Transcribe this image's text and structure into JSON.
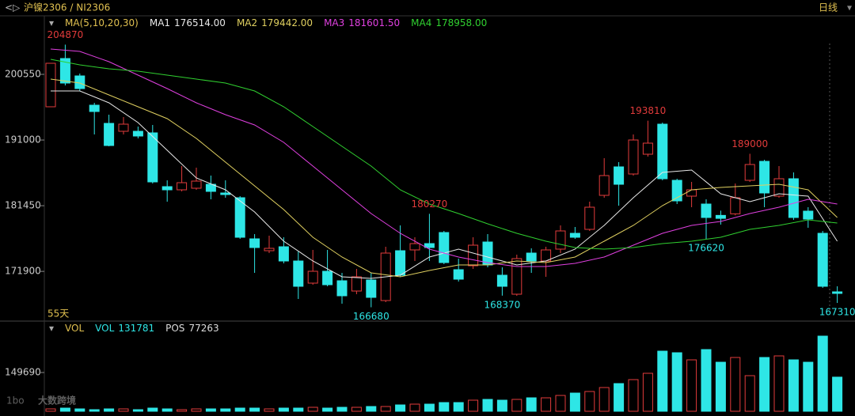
{
  "chart_data": {
    "type": "candlestick",
    "title": "沪镍2306 / NI2306",
    "period": "日线",
    "count_label": "55天",
    "watermark": "大数跨境",
    "up_color": "#e23b3b",
    "down_color": "#2ee6e6",
    "ylim": [
      164785,
      206990
    ],
    "yticks": [
      171900,
      181450,
      191000,
      200550
    ],
    "candles": {
      "open": [
        195835,
        202850,
        200320,
        196065,
        193420,
        192270,
        192270,
        192040,
        184220,
        183760,
        183990,
        184565,
        183300,
        182610,
        176630,
        174905,
        175480,
        173410,
        170190,
        171915,
        170535,
        169040,
        170650,
        167660,
        174905,
        175020,
        175940,
        177550,
        172145,
        172720,
        176170,
        171340,
        168580,
        174560,
        173410,
        175135,
        177435,
        178010,
        182955,
        187095,
        186060,
        188935,
        193305,
        185140,
        182840,
        181690,
        180040,
        180270,
        185140,
        187900,
        182840,
        185370,
        180660,
        177435,
        168925
      ],
      "high": [
        202160,
        204870,
        200665,
        196410,
        194685,
        194340,
        192960,
        193190,
        185140,
        187210,
        186980,
        185830,
        185140,
        182840,
        177320,
        177090,
        176860,
        174790,
        175020,
        175020,
        171685,
        172260,
        171685,
        175480,
        178585,
        176860,
        180270,
        177780,
        173755,
        176860,
        177320,
        172490,
        174330,
        175250,
        175480,
        178585,
        178355,
        182035,
        188360,
        187785,
        191810,
        193810,
        193535,
        185370,
        184910,
        182380,
        180730,
        184680,
        189000,
        188130,
        187210,
        186290,
        181230,
        177780,
        169730
      ],
      "low": [
        195835,
        198940,
        198135,
        191810,
        190085,
        191810,
        191235,
        184680,
        182035,
        183530,
        183760,
        182380,
        182610,
        176630,
        171685,
        174560,
        173065,
        167890,
        169960,
        169730,
        167200,
        168580,
        166680,
        167430,
        171110,
        173410,
        173410,
        172950,
        170420,
        172260,
        172490,
        168370,
        168350,
        171685,
        171110,
        174560,
        176630,
        177780,
        182610,
        181450,
        185830,
        188590,
        185140,
        181690,
        181230,
        176620,
        178700,
        180040,
        184910,
        181230,
        182610,
        179390,
        178240,
        169500,
        167310
      ],
      "close": [
        202160,
        199285,
        198480,
        195145,
        190200,
        193305,
        191580,
        184910,
        183760,
        184795,
        185025,
        183530,
        183070,
        176860,
        175365,
        175250,
        173410,
        169730,
        171915,
        169960,
        168350,
        171110,
        168120,
        174560,
        171340,
        175940,
        175365,
        173180,
        170765,
        175710,
        172835,
        169730,
        173755,
        173410,
        175020,
        177780,
        176860,
        181230,
        185830,
        184565,
        191005,
        190545,
        185370,
        182150,
        183760,
        179735,
        179610,
        182610,
        187440,
        183300,
        185370,
        179735,
        179505,
        169730,
        168695
      ]
    },
    "annotations": [
      {
        "x": 1,
        "value": 204870,
        "position": "above"
      },
      {
        "x": 26,
        "value": 180270,
        "position": "above"
      },
      {
        "x": 41,
        "value": 193810,
        "position": "above"
      },
      {
        "x": 48,
        "value": 189000,
        "position": "above"
      },
      {
        "x": 22,
        "value": 166680,
        "position": "below"
      },
      {
        "x": 31,
        "value": 168370,
        "position": "below"
      },
      {
        "x": 45,
        "value": 176620,
        "position": "below"
      },
      {
        "x": 54,
        "value": 167310,
        "position": "below"
      }
    ],
    "ma_label": "MA(5,10,20,30)",
    "ma_x": [
      0,
      2,
      4,
      6,
      8,
      10,
      12,
      14,
      16,
      18,
      20,
      22,
      24,
      26,
      28,
      30,
      32,
      34,
      36,
      38,
      40,
      42,
      44,
      46,
      48,
      50,
      52,
      54
    ],
    "ma": [
      {
        "name": "MA1",
        "color": "#e8e8e8",
        "last": 176514,
        "last_label": "176514.00",
        "values": [
          198135,
          198135,
          196410,
          193535,
          189510,
          185485,
          183760,
          180540,
          176285,
          173410,
          171110,
          170880,
          171340,
          173985,
          175135,
          173985,
          172835,
          173410,
          175135,
          178585,
          182610,
          186290,
          186635,
          183185,
          182035,
          183185,
          182840,
          176285
        ]
      },
      {
        "name": "MA2",
        "color": "#e0d060",
        "last": 179442,
        "last_label": "179442.00",
        "values": [
          199860,
          199285,
          197560,
          195835,
          194110,
          191235,
          187785,
          184335,
          180885,
          176860,
          173985,
          171685,
          171110,
          172030,
          172835,
          172835,
          173410,
          173180,
          173985,
          176285,
          178585,
          181460,
          183760,
          184105,
          184335,
          184565,
          183760,
          179735
        ]
      },
      {
        "name": "MA3",
        "color": "#e040e0",
        "last": 181601.5,
        "last_label": "181601.50",
        "values": [
          204230,
          203885,
          202390,
          200435,
          198480,
          196410,
          194685,
          193190,
          190660,
          187210,
          183760,
          180310,
          177435,
          175135,
          173985,
          173180,
          172605,
          172605,
          173065,
          173985,
          175710,
          177435,
          178585,
          179160,
          180310,
          181230,
          182380,
          181690
        ]
      },
      {
        "name": "MA4",
        "color": "#30d030",
        "last": 178958,
        "last_label": "178958.00",
        "values": [
          202735,
          201930,
          201355,
          201010,
          200435,
          199860,
          199285,
          198135,
          195835,
          192960,
          190085,
          187210,
          183760,
          181690,
          180310,
          178815,
          177435,
          176285,
          175365,
          175135,
          175365,
          175940,
          176285,
          176860,
          178010,
          178585,
          179390,
          178930
        ]
      }
    ],
    "volume": {
      "name": "VOL",
      "section_label": "VOL",
      "pos_label": "POS",
      "pos": 77263,
      "ylim": [
        0,
        342160
      ],
      "yticks": [
        149690
      ],
      "values": [
        9165,
        12220,
        9165,
        6110,
        9165,
        9165,
        6110,
        12220,
        9165,
        6110,
        9165,
        9165,
        9165,
        12220,
        12220,
        9165,
        12220,
        12220,
        15275,
        12220,
        15275,
        15275,
        18330,
        18330,
        24440,
        27495,
        27495,
        33605,
        33605,
        42770,
        45825,
        42770,
        45825,
        51935,
        51935,
        61100,
        70265,
        76375,
        91650,
        106925,
        122200,
        146640,
        232180,
        226070,
        198575,
        238290,
        189410,
        207740,
        137475,
        207740,
        213850,
        198575,
        189410,
        290225,
        131781
      ]
    }
  }
}
